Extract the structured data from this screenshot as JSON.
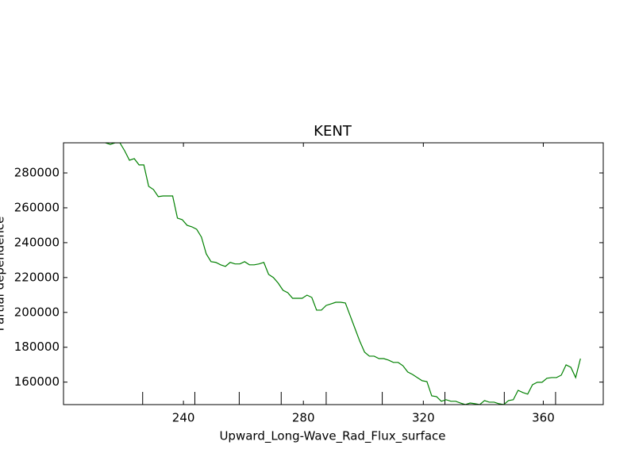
{
  "chart_data": {
    "type": "line",
    "title": "KENT",
    "x_label": "Upward_Long-Wave_Rad_Flux_surface",
    "y_label": "Partial dependence",
    "x": [
      214,
      215.6,
      217.2,
      218.8,
      220.4,
      222,
      223.6,
      225.2,
      226.8,
      228.4,
      230,
      231.6,
      233.2,
      234.8,
      236.4,
      238,
      239.6,
      241.2,
      242.8,
      244.4,
      246,
      247.6,
      249.2,
      250.8,
      252.4,
      254,
      255.6,
      257.2,
      258.8,
      260.4,
      262,
      263.6,
      265.2,
      266.8,
      268.4,
      270,
      271.6,
      273.2,
      274.8,
      276.4,
      278,
      279.6,
      281.2,
      282.8,
      284.4,
      286,
      287.6,
      289.2,
      290.8,
      292.4,
      294,
      295.6,
      297.2,
      298.8,
      300.4,
      302,
      303.6,
      305.2,
      306.8,
      308.4,
      310,
      311.6,
      313.2,
      314.8,
      316.4,
      318,
      319.6,
      321.2,
      322.8,
      324.4,
      326,
      327.6,
      329.2,
      330.8,
      332.4,
      334,
      335.6,
      337.2,
      338.8,
      340.4,
      342,
      343.6,
      345.2,
      346.8,
      348.4,
      350,
      351.6,
      353.2,
      354.8,
      356.4,
      358,
      359.6,
      361.2,
      362.8,
      364.4,
      366,
      367.6,
      369.2,
      370.8,
      372.4
    ],
    "series": [
      {
        "color": "#008000",
        "values": [
          297300,
          296400,
          297300,
          297300,
          292700,
          287300,
          288200,
          284600,
          284600,
          272300,
          270500,
          266400,
          266800,
          266800,
          266800,
          254100,
          253200,
          250000,
          249100,
          247700,
          243200,
          233600,
          229100,
          228700,
          227300,
          226400,
          228700,
          227800,
          227800,
          229100,
          227300,
          227300,
          227800,
          228700,
          221800,
          220000,
          216800,
          212700,
          211300,
          208100,
          208100,
          208100,
          209900,
          208600,
          201300,
          201300,
          204000,
          204900,
          205800,
          205800,
          205400,
          198100,
          190800,
          183500,
          177200,
          174900,
          174900,
          173500,
          173500,
          172600,
          171300,
          171300,
          169400,
          165800,
          164400,
          162600,
          160800,
          160300,
          152100,
          151700,
          149000,
          149900,
          149000,
          149000,
          148000,
          147100,
          148000,
          147600,
          147100,
          149400,
          148500,
          148500,
          147600,
          147100,
          149400,
          149900,
          155300,
          154000,
          153100,
          158500,
          159900,
          159900,
          162200,
          162600,
          162600,
          164000,
          169900,
          168500,
          162600,
          173500
        ]
      }
    ],
    "deciles": [
      226.4,
      243.8,
      258.6,
      272.6,
      287.6,
      306.3,
      327.2,
      347.0,
      364.1
    ],
    "xlim": [
      200,
      380
    ],
    "xticks": [
      240,
      280,
      320,
      360
    ],
    "ylim": [
      147100,
      297300
    ],
    "yticks": [
      160000,
      180000,
      200000,
      220000,
      240000,
      260000,
      280000
    ],
    "grid": false
  }
}
